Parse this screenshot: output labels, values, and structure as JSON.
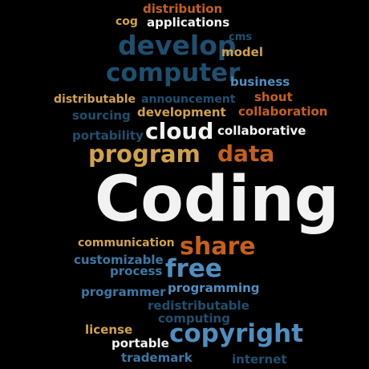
{
  "colors": {
    "background": "#000000",
    "white": "#f2f2f2",
    "dark_blue": "#1e4f6f",
    "mid_blue": "#3a78a6",
    "light_blue": "#4f8fc0",
    "orange": "#c6601c",
    "gold": "#d1a24a"
  },
  "words": [
    "distribution",
    "cog",
    "applications",
    "cms",
    "develop",
    "model",
    "computer",
    "business",
    "distributable",
    "announcement",
    "shout",
    "sourcing",
    "development",
    "collaboration",
    "portability",
    "cloud",
    "collaborative",
    "program",
    "data",
    "Coding",
    "communication",
    "share",
    "customizable",
    "process",
    "free",
    "programmer",
    "programming",
    "redistributable",
    "computing",
    "license",
    "portable",
    "copyright",
    "trademark",
    "internet"
  ]
}
